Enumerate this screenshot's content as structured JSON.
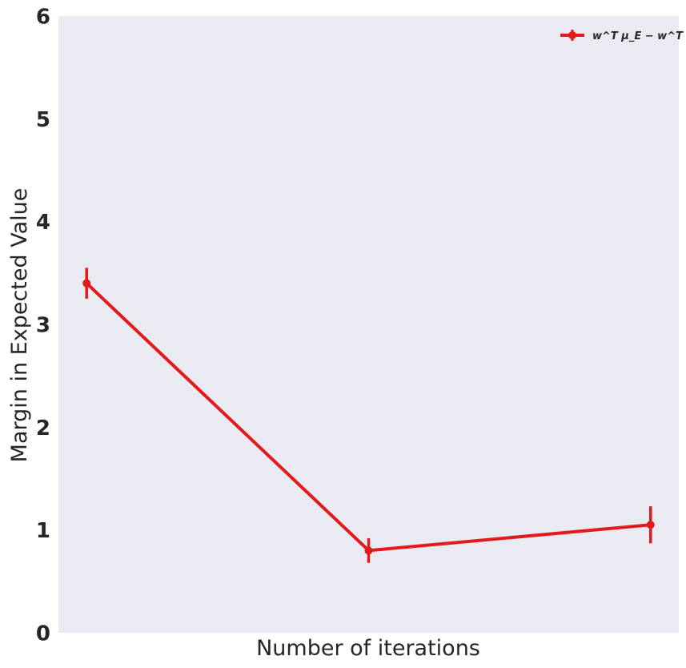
{
  "chart_data": {
    "type": "line",
    "title": "",
    "xlabel": "Number of iterations",
    "ylabel": "Margin in Expected Value",
    "x": [
      1,
      2,
      3
    ],
    "xlim": [
      0.9,
      3.1
    ],
    "ylim": [
      0,
      6
    ],
    "yticks": [
      "0",
      "1",
      "2",
      "3",
      "4",
      "5",
      "6"
    ],
    "grid": false,
    "legend_position": "top-right",
    "background_color": "#eaeaf2",
    "series": [
      {
        "name": "w^T μ_E − w^T μ_π̃",
        "color": "#e31a1c",
        "values": [
          3.4,
          0.8,
          1.05
        ],
        "error": [
          0.15,
          0.12,
          0.18
        ]
      }
    ]
  }
}
